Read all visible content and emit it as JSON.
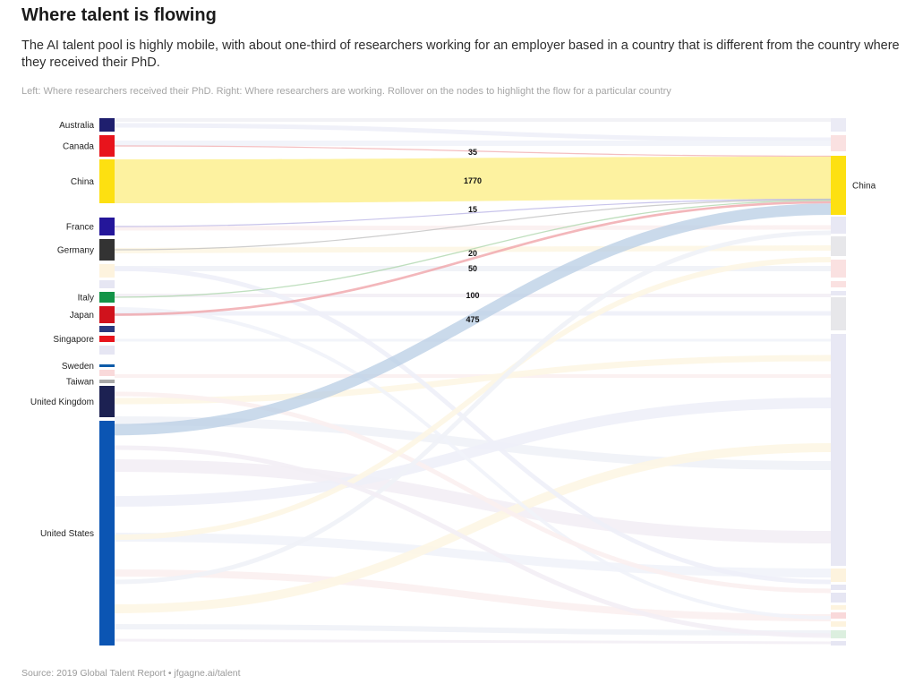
{
  "header": {
    "title": "Where talent is flowing",
    "subtitle": "The AI talent pool is highly mobile, with about one-third of researchers working for an employer based in a country that is different from the country where they received their PhD.",
    "note": "Left: Where researchers received their PhD. Right: Where researchers are working. Rollover on the nodes to highlight the flow for a particular country"
  },
  "footer": {
    "source": "Source: 2019 Global Talent Report • jfgagne.ai/talent"
  },
  "colors": {
    "Australia": "#1f1f6e",
    "Canada": "#e8141c",
    "China": "#fde011",
    "France": "#24169a",
    "Germany": "#333333",
    "Italy": "#139448",
    "Japan": "#d0121c",
    "Singapore": "#e8141c",
    "Sweden": "#0d5ba8",
    "Taiwan": "#a8a8a8",
    "United Kingdom": "#1c2152",
    "United States": "#0b55b3",
    "other_cream": "#fdf3de",
    "other_lavender": "#e6e6f3",
    "other_navy": "#2a3a80",
    "other_pink": "#f9d9da",
    "other_mint": "#dcefdf",
    "other_grey": "#e4e4e8"
  },
  "chart_data": {
    "type": "sankey",
    "title": "",
    "left_axis_note": "Where researchers received their PhD",
    "right_axis_note": "Where researchers are working",
    "source_nodes": [
      "Australia",
      "Canada",
      "China",
      "France",
      "Germany",
      "",
      "",
      "Italy",
      "Japan",
      "",
      "Singapore",
      "",
      "Sweden",
      "",
      "Taiwan",
      "United Kingdom",
      "United States"
    ],
    "target_nodes": [
      "China"
    ],
    "links": [
      {
        "source": "Canada",
        "target": "China",
        "value": 35
      },
      {
        "source": "China",
        "target": "China",
        "value": 1770
      },
      {
        "source": "France",
        "target": "China",
        "value": 15
      },
      {
        "source": "Germany",
        "target": "China",
        "value": 20
      },
      {
        "source": "Italy",
        "target": "China",
        "value": 50
      },
      {
        "source": "Japan",
        "target": "China",
        "value": 100
      },
      {
        "source": "United States",
        "target": "China",
        "value": 475
      }
    ],
    "value_labels": [
      "35",
      "1770",
      "15",
      "20",
      "50",
      "100",
      "475"
    ]
  }
}
